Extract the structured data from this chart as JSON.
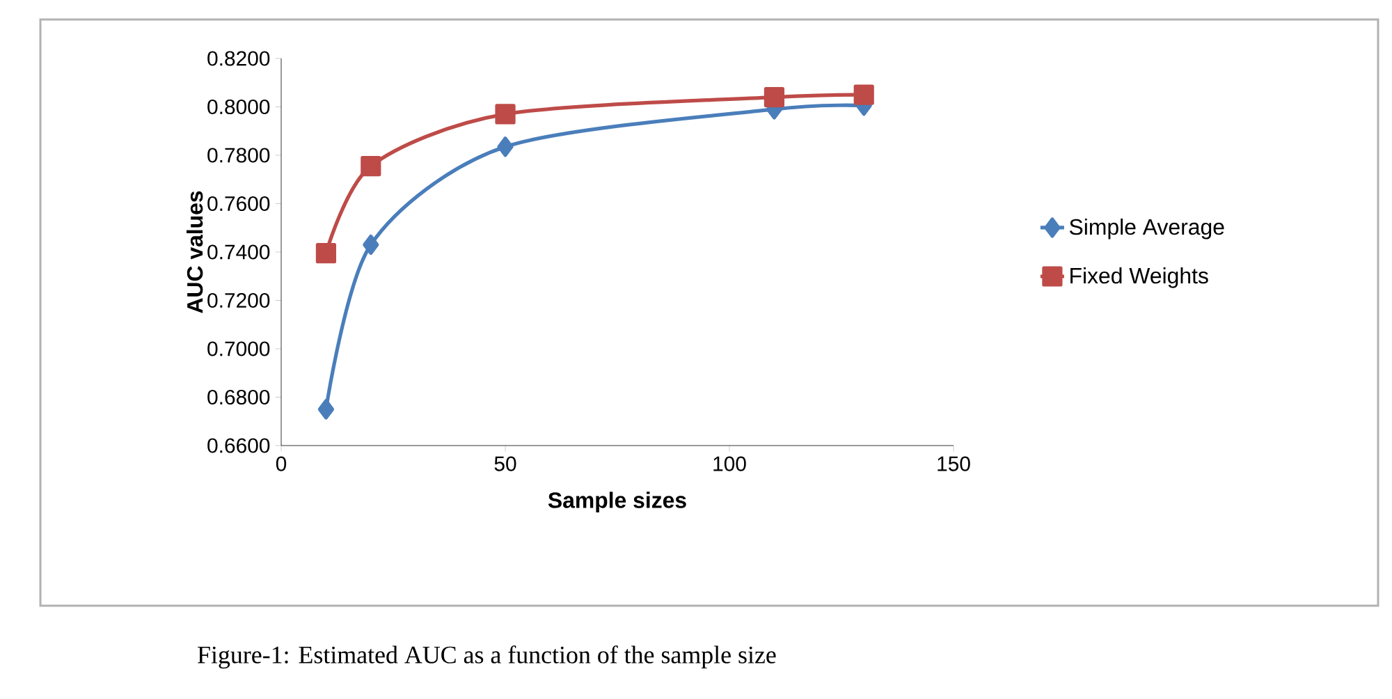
{
  "chart_data": {
    "type": "line",
    "xlabel": "Sample sizes",
    "ylabel": "AUC values",
    "x": [
      10,
      20,
      50,
      110,
      130
    ],
    "series": [
      {
        "name": "Simple Average",
        "color": "#4a7ebb",
        "marker": "diamond",
        "values": [
          0.675,
          0.743,
          0.7835,
          0.799,
          0.8005
        ]
      },
      {
        "name": "Fixed Weights",
        "color": "#be4b48",
        "marker": "square",
        "values": [
          0.7395,
          0.7755,
          0.797,
          0.804,
          0.805
        ]
      }
    ],
    "xlim": [
      0,
      150
    ],
    "xticks": [
      0,
      50,
      100,
      150
    ],
    "ylim": [
      0.66,
      0.82
    ],
    "yticks": [
      {
        "value": 0.66,
        "label": "0.6600"
      },
      {
        "value": 0.68,
        "label": "0.6800"
      },
      {
        "value": 0.7,
        "label": "0.7000"
      },
      {
        "value": 0.72,
        "label": "0.7200"
      },
      {
        "value": 0.74,
        "label": "0.7400"
      },
      {
        "value": 0.76,
        "label": "0.7600"
      },
      {
        "value": 0.78,
        "label": "0.7800"
      },
      {
        "value": 0.8,
        "label": "0.8000"
      },
      {
        "value": 0.82,
        "label": "0.8200"
      }
    ],
    "grid": false,
    "legend": "right",
    "annotations": [
      "Figure-1: Estimated AUC as a function of the sample size"
    ]
  }
}
